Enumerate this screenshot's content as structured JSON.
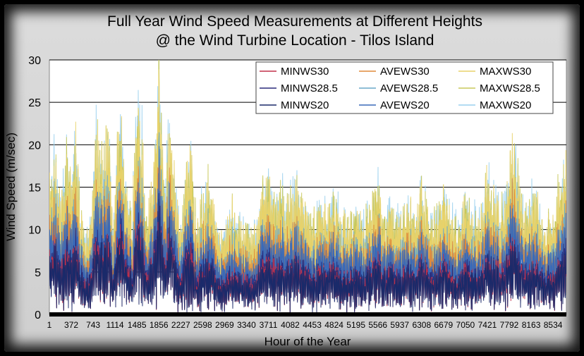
{
  "chart_data": {
    "type": "line",
    "title_line1": "Full Year Wind Speed Measurements at Different Heights",
    "title_line2": "@ the Wind Turbine Location - Tilos Island",
    "xlabel": "Hour of the Year",
    "ylabel": "Wind Speed (m/sec)",
    "xlim": [
      1,
      8760
    ],
    "ylim": [
      0,
      30
    ],
    "y_ticks": [
      0,
      5,
      10,
      15,
      20,
      25,
      30
    ],
    "x_ticks": [
      1,
      372,
      743,
      1114,
      1485,
      1856,
      2227,
      2598,
      2969,
      3340,
      3711,
      4082,
      4453,
      4824,
      5195,
      5566,
      5937,
      6308,
      6679,
      7050,
      7421,
      7792,
      8163,
      8534
    ],
    "grid": "horizontal",
    "legend_position": "top-right",
    "series": [
      {
        "name": "MINWS30",
        "color": "#c0304a"
      },
      {
        "name": "AVEWS30",
        "color": "#e08a3a"
      },
      {
        "name": "MAXWS30",
        "color": "#e8d26a"
      },
      {
        "name": "MINWS28.5",
        "color": "#2a2a7a"
      },
      {
        "name": "AVEWS28.5",
        "color": "#6aa8c8"
      },
      {
        "name": "MAXWS28.5",
        "color": "#c8c85a"
      },
      {
        "name": "MINWS20",
        "color": "#1a2a6a"
      },
      {
        "name": "AVEWS20",
        "color": "#3a6ab8"
      },
      {
        "name": "MAXWS20",
        "color": "#9ad0ee"
      }
    ],
    "envelope_peaks": [
      [
        1,
        16
      ],
      [
        100,
        21
      ],
      [
        200,
        13
      ],
      [
        300,
        20
      ],
      [
        372,
        16
      ],
      [
        450,
        21
      ],
      [
        520,
        13
      ],
      [
        600,
        9
      ],
      [
        700,
        11
      ],
      [
        790,
        24
      ],
      [
        850,
        18
      ],
      [
        950,
        21
      ],
      [
        1000,
        23
      ],
      [
        1080,
        10
      ],
      [
        1150,
        20
      ],
      [
        1200,
        24
      ],
      [
        1300,
        16
      ],
      [
        1400,
        11
      ],
      [
        1490,
        27
      ],
      [
        1560,
        23
      ],
      [
        1650,
        11
      ],
      [
        1760,
        16
      ],
      [
        1856,
        30
      ],
      [
        1950,
        14
      ],
      [
        2040,
        24
      ],
      [
        2150,
        14
      ],
      [
        2227,
        10
      ],
      [
        2300,
        16
      ],
      [
        2400,
        19
      ],
      [
        2500,
        11
      ],
      [
        2598,
        14
      ],
      [
        2700,
        17
      ],
      [
        2800,
        12
      ],
      [
        2900,
        9
      ],
      [
        2969,
        11
      ],
      [
        3100,
        13
      ],
      [
        3200,
        11
      ],
      [
        3340,
        10
      ],
      [
        3450,
        9
      ],
      [
        3600,
        15
      ],
      [
        3711,
        16
      ],
      [
        3850,
        13
      ],
      [
        3950,
        15
      ],
      [
        4082,
        14
      ],
      [
        4200,
        15
      ],
      [
        4300,
        13
      ],
      [
        4453,
        11
      ],
      [
        4600,
        13
      ],
      [
        4700,
        12
      ],
      [
        4824,
        14
      ],
      [
        4950,
        12
      ],
      [
        5100,
        11
      ],
      [
        5195,
        13
      ],
      [
        5300,
        11
      ],
      [
        5450,
        13
      ],
      [
        5566,
        16
      ],
      [
        5700,
        12
      ],
      [
        5850,
        13
      ],
      [
        5937,
        11
      ],
      [
        6100,
        13
      ],
      [
        6250,
        12
      ],
      [
        6308,
        16
      ],
      [
        6450,
        11
      ],
      [
        6600,
        12
      ],
      [
        6679,
        15
      ],
      [
        6800,
        12
      ],
      [
        6950,
        10
      ],
      [
        7050,
        15
      ],
      [
        7200,
        12
      ],
      [
        7300,
        11
      ],
      [
        7421,
        17
      ],
      [
        7550,
        14
      ],
      [
        7650,
        13
      ],
      [
        7750,
        15
      ],
      [
        7850,
        22
      ],
      [
        7950,
        16
      ],
      [
        8050,
        12
      ],
      [
        8163,
        15
      ],
      [
        8300,
        13
      ],
      [
        8400,
        11
      ],
      [
        8534,
        12
      ],
      [
        8650,
        16
      ],
      [
        8760,
        18
      ]
    ]
  }
}
